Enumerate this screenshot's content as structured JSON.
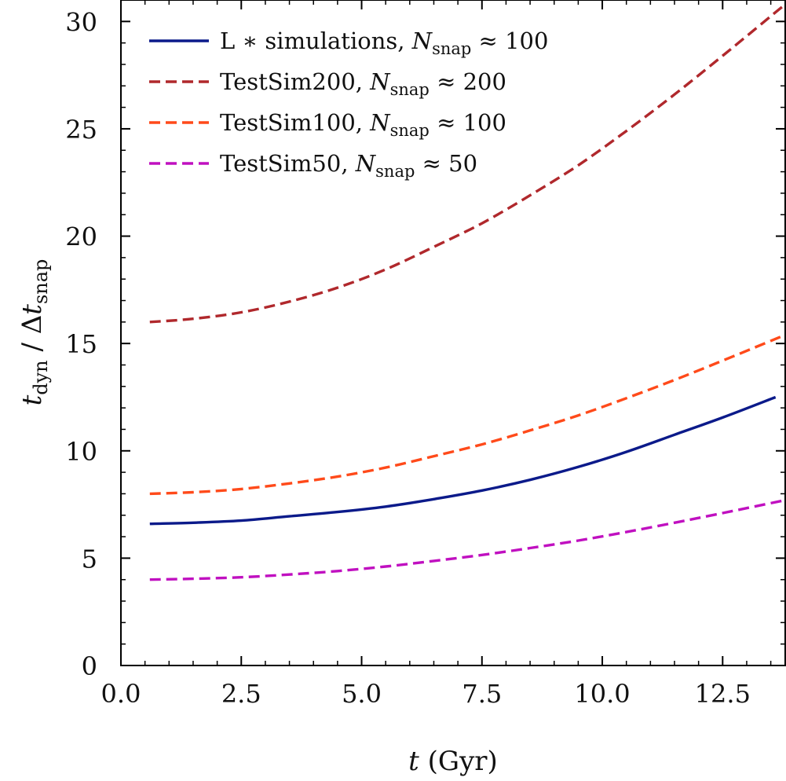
{
  "chart_data": {
    "type": "line",
    "xlabel": "t (Gyr)",
    "ylabel": "t_dyn / Δt_snap",
    "xlim": [
      0.0,
      13.8
    ],
    "ylim": [
      0,
      31
    ],
    "xticks": [
      "0.0",
      "2.5",
      "5.0",
      "7.5",
      "10.0",
      "12.5"
    ],
    "xtick_values": [
      0.0,
      2.5,
      5.0,
      7.5,
      10.0,
      12.5
    ],
    "yticks": [
      "0",
      "5",
      "10",
      "15",
      "20",
      "25",
      "30"
    ],
    "ytick_values": [
      0,
      5,
      10,
      15,
      20,
      25,
      30
    ],
    "legend_position": "top-left",
    "grid": false,
    "series": [
      {
        "name": "L ∗ simulations,",
        "legend_symbol": "N",
        "legend_subscript": "snap",
        "legend_approx": "≈ 100",
        "color": "#0b1a8a",
        "style": "solid",
        "x": [
          0.6,
          1.5,
          2.5,
          3.5,
          4.5,
          5.5,
          6.5,
          7.5,
          8.5,
          9.5,
          10.5,
          11.5,
          12.5,
          13.6
        ],
        "y": [
          6.6,
          6.65,
          6.75,
          6.95,
          7.15,
          7.4,
          7.75,
          8.15,
          8.65,
          9.25,
          9.95,
          10.75,
          11.55,
          12.5
        ]
      },
      {
        "name": "TestSim200,",
        "legend_symbol": "N",
        "legend_subscript": "snap",
        "legend_approx": "≈ 200",
        "color": "#b0282c",
        "style": "dashed",
        "x": [
          0.6,
          1.5,
          2.5,
          3.5,
          4.5,
          5.5,
          6.5,
          7.5,
          8.5,
          9.5,
          10.5,
          11.5,
          12.5,
          13.8
        ],
        "y": [
          16.0,
          16.15,
          16.45,
          16.95,
          17.6,
          18.45,
          19.5,
          20.6,
          21.9,
          23.3,
          24.9,
          26.6,
          28.4,
          30.8
        ]
      },
      {
        "name": "TestSim100,",
        "legend_symbol": "N",
        "legend_subscript": "snap",
        "legend_approx": "≈ 100",
        "color": "#ff4a1a",
        "style": "dashed",
        "x": [
          0.6,
          1.5,
          2.5,
          3.5,
          4.5,
          5.5,
          6.5,
          7.5,
          8.5,
          9.5,
          10.5,
          11.5,
          12.5,
          13.8
        ],
        "y": [
          8.0,
          8.07,
          8.22,
          8.48,
          8.8,
          9.22,
          9.75,
          10.3,
          10.95,
          11.65,
          12.45,
          13.3,
          14.2,
          15.4
        ]
      },
      {
        "name": "TestSim50,",
        "legend_symbol": "N",
        "legend_subscript": "snap",
        "legend_approx": "≈ 50",
        "color": "#c010c0",
        "style": "dashed",
        "x": [
          0.6,
          1.5,
          2.5,
          3.5,
          4.5,
          5.5,
          6.5,
          7.5,
          8.5,
          9.5,
          10.5,
          11.5,
          12.5,
          13.8
        ],
        "y": [
          4.0,
          4.04,
          4.11,
          4.24,
          4.4,
          4.61,
          4.87,
          5.15,
          5.47,
          5.82,
          6.22,
          6.65,
          7.1,
          7.7
        ]
      }
    ]
  }
}
